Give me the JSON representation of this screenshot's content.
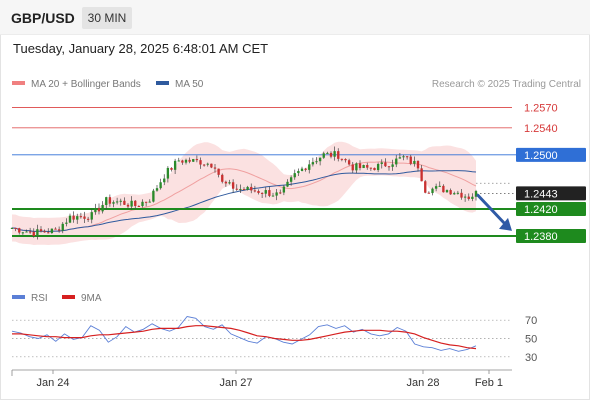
{
  "header": {
    "symbol": "GBP/USD",
    "timeframe": "30 MIN"
  },
  "datetime": "Tuesday, January 28, 2025 6:48:01 AM CET",
  "legend": {
    "bb": {
      "label": "MA 20 + Bollinger Bands",
      "color": "#f08080"
    },
    "ma50": {
      "label": "MA 50",
      "color": "#2f5a9e"
    },
    "credit": "Research © 2025 Trading Central"
  },
  "rsi_legend": {
    "rsi": {
      "label": "RSI",
      "color": "#5b7fd6"
    },
    "ma9": {
      "label": "9MA",
      "color": "#d62020"
    }
  },
  "chart_data": [
    {
      "type": "candlestick",
      "ylim": [
        1.2312,
        1.2587
      ],
      "levels": [
        {
          "label": "1.2570",
          "value": 1.257,
          "kind": "resistance",
          "color": "#e05a5a"
        },
        {
          "label": "1.2540",
          "value": 1.254,
          "kind": "resistance",
          "color": "#e05a5a"
        },
        {
          "label": "1.2500",
          "value": 1.25,
          "kind": "pivot",
          "color": "#2f6fd6"
        },
        {
          "label": "1.2443",
          "value": 1.2443,
          "kind": "last",
          "color": "#222222"
        },
        {
          "label": "1.2420",
          "value": 1.242,
          "kind": "support",
          "color": "#1e8a1e"
        },
        {
          "label": "1.2380",
          "value": 1.238,
          "kind": "support",
          "color": "#1e8a1e"
        }
      ],
      "x_ticks": [
        "Jan 24",
        "Jan 27",
        "Jan 28",
        "Feb 1"
      ],
      "forecast": "down",
      "grid": false
    },
    {
      "type": "line",
      "name": "RSI",
      "y_ticks": [
        30,
        50,
        70
      ],
      "ylim": [
        20,
        80
      ],
      "series": [
        {
          "name": "RSI",
          "values": [
            58,
            56,
            52,
            50,
            54,
            47,
            55,
            49,
            51,
            64,
            59,
            46,
            52,
            63,
            57,
            60,
            66,
            61,
            58,
            62,
            74,
            72,
            63,
            60,
            65,
            55,
            51,
            47,
            45,
            52,
            50,
            46,
            44,
            49,
            54,
            63,
            65,
            61,
            64,
            57,
            60,
            55,
            53,
            55,
            62,
            58,
            44,
            41,
            40,
            37,
            39,
            36,
            38,
            42
          ]
        },
        {
          "name": "9MA",
          "values": [
            55,
            55,
            54,
            53,
            52,
            52,
            51,
            51,
            51,
            53,
            54,
            54,
            55,
            56,
            57,
            58,
            60,
            61,
            61,
            61,
            63,
            64,
            64,
            63,
            62,
            61,
            59,
            56,
            53,
            52,
            50,
            49,
            48,
            48,
            49,
            51,
            53,
            55,
            57,
            58,
            59,
            59,
            59,
            58,
            58,
            57,
            55,
            51,
            48,
            45,
            43,
            42,
            40,
            39
          ]
        }
      ]
    }
  ]
}
